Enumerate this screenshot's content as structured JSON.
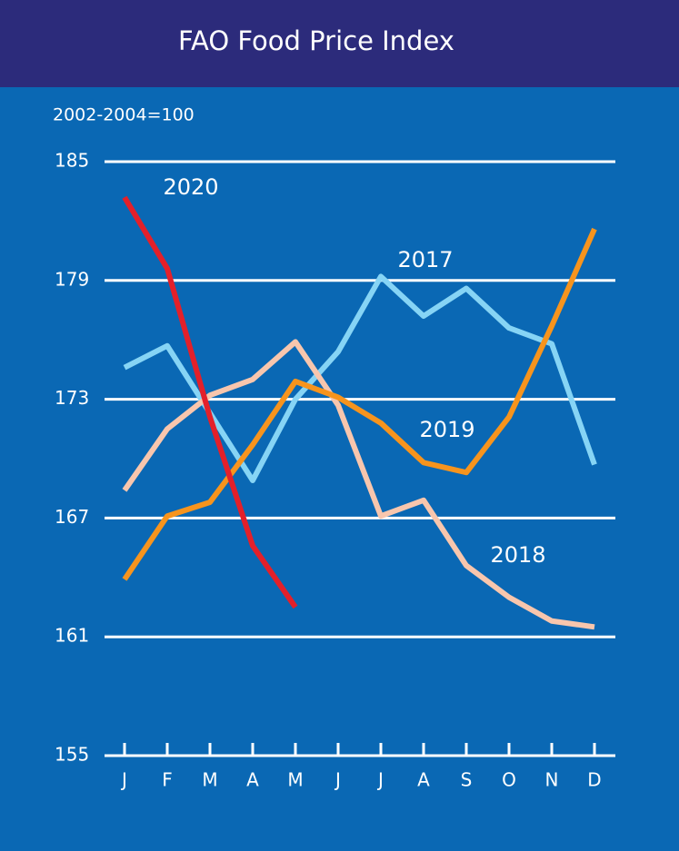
{
  "chart_data": {
    "type": "line",
    "title": "FAO Food Price Index",
    "subtitle": "2002-2004=100",
    "categories": [
      "J",
      "F",
      "M",
      "A",
      "M",
      "J",
      "J",
      "A",
      "S",
      "O",
      "N",
      "D"
    ],
    "series": [
      {
        "name": "2017",
        "color": "#86d4f5",
        "values": [
          174.6,
          175.7,
          172.3,
          168.9,
          173.0,
          175.4,
          179.2,
          177.2,
          178.6,
          176.6,
          175.8,
          169.7
        ]
      },
      {
        "name": "2018",
        "color": "#f8c6ad",
        "values": [
          168.4,
          171.5,
          173.2,
          174.0,
          175.9,
          172.7,
          167.1,
          167.9,
          164.6,
          163.0,
          161.8,
          161.5
        ]
      },
      {
        "name": "2019",
        "color": "#f7941d",
        "values": [
          163.9,
          167.1,
          167.8,
          170.7,
          173.9,
          173.1,
          171.8,
          169.8,
          169.3,
          172.1,
          176.7,
          181.6
        ]
      },
      {
        "name": "2020",
        "color": "#e3202a",
        "values": [
          183.2,
          179.6,
          172.1,
          165.6,
          162.5,
          null,
          null,
          null,
          null,
          null,
          null,
          null
        ]
      }
    ],
    "ylim": [
      155,
      185
    ],
    "yticks": [
      155,
      161,
      167,
      173,
      179,
      185
    ],
    "grid": true
  }
}
